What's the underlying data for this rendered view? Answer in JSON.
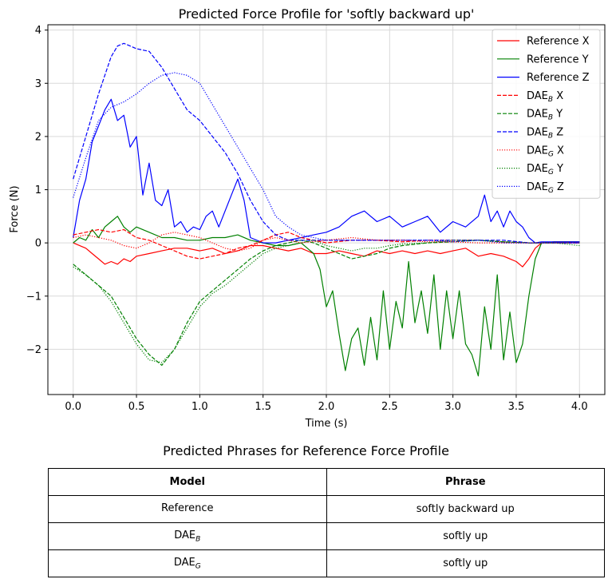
{
  "chart_data": {
    "type": "line",
    "title": "Predicted Force Profile for 'softly backward up'",
    "xlabel": "Time (s)",
    "ylabel": "Force (N)",
    "xlim": [
      -0.2,
      4.2
    ],
    "ylim": [
      -2.85,
      4.1
    ],
    "xticks": [
      0.0,
      0.5,
      1.0,
      1.5,
      2.0,
      2.5,
      3.0,
      3.5,
      4.0
    ],
    "xtick_labels": [
      "0.0",
      "0.5",
      "1.0",
      "1.5",
      "2.0",
      "2.5",
      "3.0",
      "3.5",
      "4.0"
    ],
    "yticks": [
      -2,
      -1,
      0,
      1,
      2,
      3,
      4
    ],
    "ytick_labels": [
      "−2",
      "−1",
      "0",
      "1",
      "2",
      "3",
      "4"
    ],
    "grid": true,
    "legend_position": "top-right",
    "series": [
      {
        "name": "Reference X",
        "name_main": "Reference",
        "name_sub": "",
        "name_suffix": "X",
        "color": "#ff0000",
        "style": "solid",
        "x": [
          0,
          0.1,
          0.15,
          0.2,
          0.25,
          0.3,
          0.35,
          0.4,
          0.45,
          0.5,
          0.6,
          0.7,
          0.8,
          0.9,
          1.0,
          1.1,
          1.2,
          1.3,
          1.4,
          1.5,
          1.6,
          1.7,
          1.8,
          1.9,
          2.0,
          2.1,
          2.2,
          2.3,
          2.4,
          2.5,
          2.6,
          2.7,
          2.8,
          2.9,
          3.0,
          3.1,
          3.2,
          3.3,
          3.4,
          3.5,
          3.55,
          3.6,
          3.65,
          3.7,
          3.8,
          4.0
        ],
        "y": [
          0,
          -0.1,
          -0.2,
          -0.3,
          -0.4,
          -0.35,
          -0.4,
          -0.3,
          -0.35,
          -0.25,
          -0.2,
          -0.15,
          -0.1,
          -0.1,
          -0.15,
          -0.1,
          -0.2,
          -0.15,
          -0.05,
          -0.05,
          -0.1,
          -0.15,
          -0.1,
          -0.2,
          -0.2,
          -0.15,
          -0.2,
          -0.25,
          -0.15,
          -0.2,
          -0.15,
          -0.2,
          -0.15,
          -0.2,
          -0.15,
          -0.1,
          -0.25,
          -0.2,
          -0.25,
          -0.35,
          -0.45,
          -0.3,
          -0.1,
          0,
          0.02,
          0.02
        ]
      },
      {
        "name": "Reference Y",
        "name_main": "Reference",
        "name_sub": "",
        "name_suffix": "Y",
        "color": "#008000",
        "style": "solid",
        "x": [
          0,
          0.05,
          0.1,
          0.15,
          0.2,
          0.25,
          0.3,
          0.35,
          0.4,
          0.45,
          0.5,
          0.6,
          0.7,
          0.8,
          0.9,
          1.0,
          1.1,
          1.2,
          1.3,
          1.4,
          1.5,
          1.6,
          1.7,
          1.8,
          1.85,
          1.9,
          1.95,
          2.0,
          2.05,
          2.1,
          2.15,
          2.2,
          2.25,
          2.3,
          2.35,
          2.4,
          2.45,
          2.5,
          2.55,
          2.6,
          2.65,
          2.7,
          2.75,
          2.8,
          2.85,
          2.9,
          2.95,
          3.0,
          3.05,
          3.1,
          3.15,
          3.2,
          3.25,
          3.3,
          3.35,
          3.4,
          3.45,
          3.5,
          3.55,
          3.6,
          3.65,
          3.7,
          3.8,
          4.0
        ],
        "y": [
          0,
          0.1,
          0.05,
          0.25,
          0.1,
          0.3,
          0.4,
          0.5,
          0.3,
          0.2,
          0.3,
          0.2,
          0.1,
          0.1,
          0.05,
          0.05,
          0.1,
          0.1,
          0.15,
          0.05,
          0,
          -0.05,
          -0.05,
          0,
          -0.1,
          -0.2,
          -0.5,
          -1.2,
          -0.9,
          -1.7,
          -2.4,
          -1.8,
          -1.6,
          -2.3,
          -1.4,
          -2.2,
          -0.9,
          -2.0,
          -1.1,
          -1.6,
          -0.35,
          -1.5,
          -0.9,
          -1.7,
          -0.6,
          -2.0,
          -0.9,
          -1.8,
          -0.9,
          -1.9,
          -2.1,
          -2.5,
          -1.2,
          -2.0,
          -0.6,
          -2.2,
          -1.3,
          -2.25,
          -1.9,
          -1.0,
          -0.3,
          0,
          0.02,
          0.02
        ]
      },
      {
        "name": "Reference Z",
        "name_main": "Reference",
        "name_sub": "",
        "name_suffix": "Z",
        "color": "#0000ff",
        "style": "solid",
        "x": [
          0,
          0.05,
          0.1,
          0.15,
          0.2,
          0.25,
          0.3,
          0.35,
          0.4,
          0.45,
          0.5,
          0.55,
          0.6,
          0.65,
          0.7,
          0.75,
          0.8,
          0.85,
          0.9,
          0.95,
          1.0,
          1.05,
          1.1,
          1.15,
          1.2,
          1.25,
          1.3,
          1.35,
          1.4,
          1.5,
          1.6,
          1.7,
          1.8,
          1.9,
          2.0,
          2.1,
          2.2,
          2.3,
          2.4,
          2.5,
          2.6,
          2.7,
          2.8,
          2.9,
          3.0,
          3.1,
          3.2,
          3.25,
          3.3,
          3.35,
          3.4,
          3.45,
          3.5,
          3.55,
          3.6,
          3.65,
          3.7,
          3.8,
          4.0
        ],
        "y": [
          0.1,
          0.8,
          1.2,
          1.9,
          2.2,
          2.5,
          2.7,
          2.3,
          2.4,
          1.8,
          2.0,
          0.9,
          1.5,
          0.8,
          0.7,
          1.0,
          0.3,
          0.4,
          0.2,
          0.3,
          0.25,
          0.5,
          0.6,
          0.3,
          0.6,
          0.9,
          1.2,
          0.8,
          0.1,
          0,
          0,
          0.05,
          0.1,
          0.15,
          0.2,
          0.3,
          0.5,
          0.6,
          0.4,
          0.5,
          0.3,
          0.4,
          0.5,
          0.2,
          0.4,
          0.3,
          0.5,
          0.9,
          0.4,
          0.6,
          0.3,
          0.6,
          0.4,
          0.3,
          0.1,
          0,
          0.02,
          0.02,
          0.02
        ]
      },
      {
        "name": "DAEB X",
        "name_main": "DAE",
        "name_sub": "B",
        "name_suffix": "X",
        "color": "#ff0000",
        "style": "dashed",
        "x": [
          0,
          0.1,
          0.2,
          0.3,
          0.4,
          0.5,
          0.6,
          0.7,
          0.8,
          0.9,
          1.0,
          1.1,
          1.2,
          1.3,
          1.4,
          1.5,
          1.6,
          1.7,
          1.8,
          1.9,
          2.0,
          2.2,
          2.4,
          2.6,
          2.8,
          3.0,
          3.2,
          3.4,
          3.6,
          3.8,
          4.0
        ],
        "y": [
          0.15,
          0.2,
          0.25,
          0.2,
          0.25,
          0.1,
          0.05,
          -0.05,
          -0.15,
          -0.25,
          -0.3,
          -0.25,
          -0.2,
          -0.1,
          -0.05,
          0.05,
          0.15,
          0.2,
          0.1,
          0.05,
          0,
          0.05,
          0.05,
          0.02,
          0.05,
          0.05,
          0.05,
          0.02,
          0,
          0,
          0
        ]
      },
      {
        "name": "DAEB Y",
        "name_main": "DAE",
        "name_sub": "B",
        "name_suffix": "Y",
        "color": "#008000",
        "style": "dashed",
        "x": [
          0,
          0.1,
          0.2,
          0.3,
          0.4,
          0.5,
          0.6,
          0.7,
          0.8,
          0.9,
          1.0,
          1.1,
          1.2,
          1.3,
          1.4,
          1.5,
          1.6,
          1.7,
          1.8,
          1.9,
          2.0,
          2.1,
          2.2,
          2.3,
          2.4,
          2.5,
          2.6,
          2.8,
          3.0,
          3.2,
          3.4,
          3.6,
          3.8,
          4.0
        ],
        "y": [
          -0.4,
          -0.6,
          -0.8,
          -1.0,
          -1.4,
          -1.8,
          -2.1,
          -2.3,
          -2.0,
          -1.5,
          -1.1,
          -0.9,
          -0.7,
          -0.5,
          -0.3,
          -0.15,
          -0.05,
          0,
          0.05,
          0,
          -0.1,
          -0.2,
          -0.3,
          -0.25,
          -0.2,
          -0.1,
          -0.05,
          0,
          0.02,
          0.05,
          0.02,
          0,
          0,
          0
        ]
      },
      {
        "name": "DAEB Z",
        "name_main": "DAE",
        "name_sub": "B",
        "name_suffix": "Z",
        "color": "#0000ff",
        "style": "dashed",
        "x": [
          0,
          0.1,
          0.2,
          0.3,
          0.35,
          0.4,
          0.45,
          0.5,
          0.6,
          0.7,
          0.8,
          0.9,
          1.0,
          1.1,
          1.2,
          1.3,
          1.4,
          1.5,
          1.6,
          1.7,
          1.8,
          1.9,
          2.0,
          2.2,
          2.4,
          2.6,
          2.8,
          3.0,
          3.2,
          3.4,
          3.6,
          3.8,
          4.0
        ],
        "y": [
          1.2,
          2.0,
          2.8,
          3.5,
          3.7,
          3.75,
          3.7,
          3.65,
          3.6,
          3.3,
          2.9,
          2.5,
          2.3,
          2.0,
          1.7,
          1.3,
          0.8,
          0.4,
          0.15,
          0.05,
          0.05,
          0.05,
          0.05,
          0.05,
          0.05,
          0.05,
          0.05,
          0.05,
          0.05,
          0.05,
          0,
          0,
          0
        ]
      },
      {
        "name": "DAEG X",
        "name_main": "DAE",
        "name_sub": "G",
        "name_suffix": "X",
        "color": "#ff0000",
        "style": "dotted",
        "x": [
          0,
          0.1,
          0.2,
          0.3,
          0.4,
          0.5,
          0.6,
          0.7,
          0.8,
          0.9,
          1.0,
          1.1,
          1.2,
          1.3,
          1.4,
          1.5,
          1.6,
          1.7,
          1.8,
          2.0,
          2.2,
          2.4,
          2.6,
          2.8,
          3.0,
          3.2,
          3.4,
          3.6,
          3.8,
          4.0
        ],
        "y": [
          0.1,
          0.15,
          0.1,
          0.05,
          -0.05,
          -0.1,
          0,
          0.15,
          0.2,
          0.15,
          0.1,
          0,
          -0.1,
          -0.15,
          -0.1,
          0.05,
          0.1,
          0.05,
          0,
          0.05,
          0.1,
          0.05,
          0.05,
          0.02,
          0.02,
          0,
          0,
          0,
          0,
          0
        ]
      },
      {
        "name": "DAEG Y",
        "name_main": "DAE",
        "name_sub": "G",
        "name_suffix": "Y",
        "color": "#008000",
        "style": "dotted",
        "x": [
          0,
          0.1,
          0.2,
          0.3,
          0.4,
          0.5,
          0.6,
          0.7,
          0.8,
          0.9,
          1.0,
          1.1,
          1.2,
          1.3,
          1.4,
          1.5,
          1.6,
          1.7,
          1.8,
          1.9,
          2.0,
          2.1,
          2.2,
          2.3,
          2.4,
          2.5,
          2.6,
          2.8,
          3.0,
          3.2,
          3.4,
          3.6,
          3.8,
          4.0
        ],
        "y": [
          -0.45,
          -0.6,
          -0.8,
          -1.1,
          -1.5,
          -1.9,
          -2.2,
          -2.25,
          -2.0,
          -1.6,
          -1.2,
          -0.95,
          -0.8,
          -0.6,
          -0.4,
          -0.2,
          -0.1,
          -0.05,
          0,
          0.05,
          -0.05,
          -0.1,
          -0.15,
          -0.1,
          -0.1,
          -0.05,
          -0.02,
          0,
          0.05,
          0.05,
          0.02,
          0,
          0,
          -0.05
        ]
      },
      {
        "name": "DAEG Z",
        "name_main": "DAE",
        "name_sub": "G",
        "name_suffix": "Z",
        "color": "#0000ff",
        "style": "dotted",
        "x": [
          0,
          0.1,
          0.2,
          0.3,
          0.4,
          0.5,
          0.6,
          0.7,
          0.8,
          0.9,
          1.0,
          1.1,
          1.2,
          1.3,
          1.4,
          1.5,
          1.6,
          1.7,
          1.8,
          1.9,
          2.0,
          2.2,
          2.4,
          2.6,
          2.8,
          3.0,
          3.2,
          3.4,
          3.6,
          3.8,
          4.0
        ],
        "y": [
          0.85,
          1.6,
          2.3,
          2.55,
          2.65,
          2.8,
          3.0,
          3.15,
          3.2,
          3.15,
          3.0,
          2.6,
          2.2,
          1.8,
          1.4,
          1.0,
          0.5,
          0.3,
          0.15,
          0.1,
          0.05,
          0.05,
          0.05,
          0.05,
          0.05,
          0.02,
          0.05,
          0,
          0,
          0,
          0
        ]
      }
    ]
  },
  "table": {
    "title": "Predicted Phrases for Reference Force Profile",
    "headers": {
      "model": "Model",
      "phrase": "Phrase"
    },
    "rows": [
      {
        "model_main": "Reference",
        "model_sub": "",
        "phrase": "softly backward up"
      },
      {
        "model_main": "DAE",
        "model_sub": "B",
        "phrase": "softly up"
      },
      {
        "model_main": "DAE",
        "model_sub": "G",
        "phrase": "softly  up"
      }
    ]
  }
}
